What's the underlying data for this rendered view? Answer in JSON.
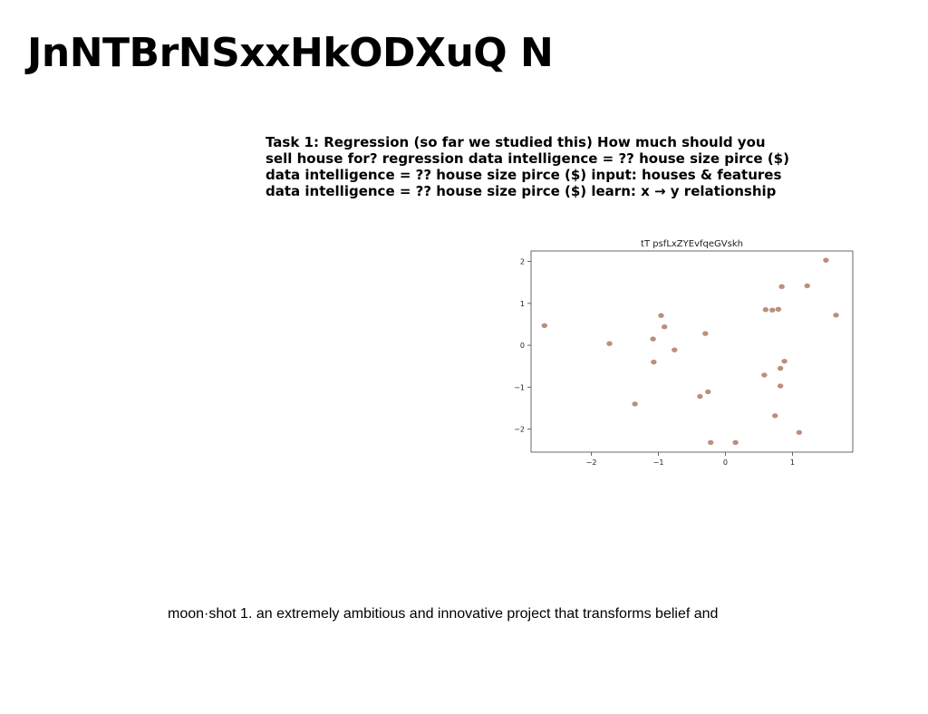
{
  "slide": {
    "title": "JnNTBrNSxxHkODXuQ N",
    "body": "Task 1: Regression (so far we studied this) How much should you sell house for? regression data intelligence = ?? house size pirce ($) data intelligence = ?? house size pirce ($) input: houses & features data intelligence = ?? house size pirce ($) learn: x → y relationship",
    "caption": "moon·shot 1. an extremely ambitious and innovative project that transforms belief and"
  },
  "chart_data": {
    "type": "scatter",
    "title": "tT psfLxZYEvfqeGVskh",
    "xlabel": "",
    "ylabel": "",
    "xlim": [
      -2.9,
      1.9
    ],
    "ylim": [
      -2.55,
      2.25
    ],
    "xticks": [
      -2,
      -1,
      0,
      1
    ],
    "yticks": [
      -2,
      -1,
      0,
      1,
      2
    ],
    "grid": false,
    "point_color": "#b5826e",
    "points": [
      {
        "x": -2.7,
        "y": 0.47
      },
      {
        "x": -1.73,
        "y": 0.04
      },
      {
        "x": -1.35,
        "y": -1.4
      },
      {
        "x": -1.08,
        "y": 0.15
      },
      {
        "x": -1.07,
        "y": -0.4
      },
      {
        "x": -0.96,
        "y": 0.71
      },
      {
        "x": -0.91,
        "y": 0.44
      },
      {
        "x": -0.76,
        "y": -0.11
      },
      {
        "x": -0.38,
        "y": -1.22
      },
      {
        "x": -0.3,
        "y": 0.28
      },
      {
        "x": -0.26,
        "y": -1.11
      },
      {
        "x": -0.22,
        "y": -2.32
      },
      {
        "x": 0.15,
        "y": -2.32
      },
      {
        "x": 0.58,
        "y": -0.71
      },
      {
        "x": 0.6,
        "y": 0.85
      },
      {
        "x": 0.7,
        "y": 0.84
      },
      {
        "x": 0.74,
        "y": -1.68
      },
      {
        "x": 0.79,
        "y": 0.86
      },
      {
        "x": 0.82,
        "y": -0.55
      },
      {
        "x": 0.82,
        "y": -0.97
      },
      {
        "x": 0.84,
        "y": 1.4
      },
      {
        "x": 0.88,
        "y": -0.38
      },
      {
        "x": 1.1,
        "y": -2.08
      },
      {
        "x": 1.22,
        "y": 1.42
      },
      {
        "x": 1.5,
        "y": 2.03
      },
      {
        "x": 1.65,
        "y": 0.72
      }
    ]
  }
}
